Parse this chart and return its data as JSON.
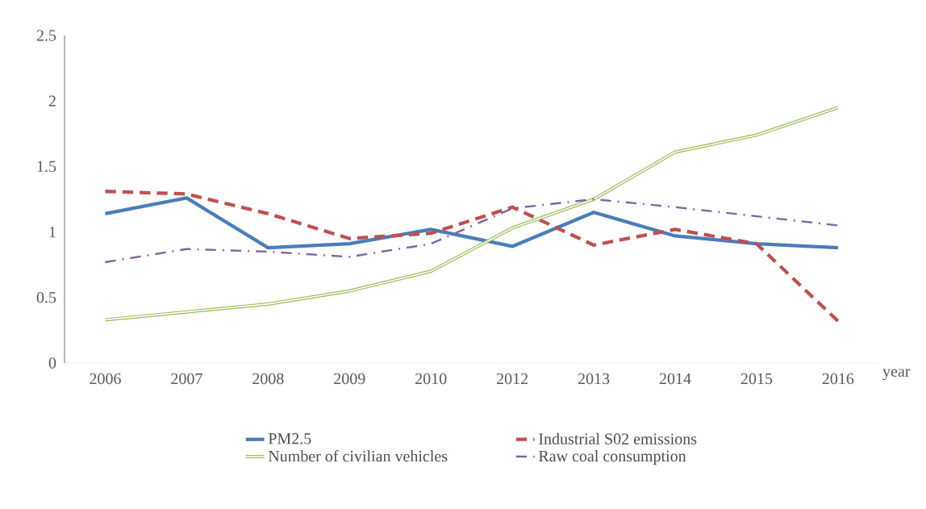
{
  "chart_data": {
    "type": "line",
    "xlabel": "year",
    "categories": [
      "2006",
      "2007",
      "2008",
      "2009",
      "2010",
      "2012",
      "2013",
      "2014",
      "2015",
      "2016"
    ],
    "series": [
      {
        "name": "PM2.5",
        "color": "#4a7ebb",
        "line_style": "solid",
        "values": [
          1.14,
          1.26,
          0.88,
          0.91,
          1.02,
          0.89,
          1.15,
          0.97,
          0.91,
          0.88
        ]
      },
      {
        "name": "Industrial S02 emissions",
        "color": "#c0504d",
        "line_style": "dashed",
        "values": [
          1.31,
          1.29,
          1.14,
          0.95,
          0.99,
          1.19,
          0.9,
          1.02,
          0.91,
          0.32
        ]
      },
      {
        "name": "Number of civilian vehicles",
        "color": "#9bbb59",
        "line_style": "solid",
        "values": [
          0.33,
          0.39,
          0.45,
          0.55,
          0.7,
          1.03,
          1.25,
          1.61,
          1.74,
          1.95
        ]
      },
      {
        "name": "Raw coal consumption",
        "color": "#8064a2",
        "line_style": "dotted",
        "values": [
          0.77,
          0.87,
          0.85,
          0.81,
          0.91,
          1.18,
          1.25,
          1.19,
          1.12,
          1.05
        ]
      }
    ],
    "ylim": [
      0,
      2.5
    ],
    "yticks": [
      0,
      0.5,
      1,
      1.5,
      2,
      2.5
    ],
    "grid": false,
    "legend": "bottom",
    "marker": "none"
  }
}
